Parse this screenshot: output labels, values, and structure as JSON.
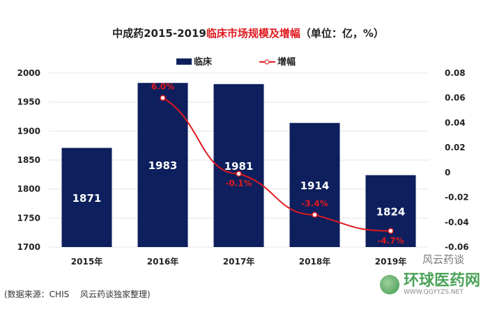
{
  "chart_data": {
    "type": "bar",
    "title_black": "中成药2015-2019",
    "title_red": "临床市场规模及增幅",
    "title_unit": "（单位：亿，%）",
    "categories": [
      "2015年",
      "2016年",
      "2017年",
      "2018年",
      "2019年"
    ],
    "series": [
      {
        "name": "临床",
        "type": "bar",
        "axis": "left",
        "values": [
          1871,
          1983,
          1981,
          1914,
          1824
        ],
        "color": "#0d1f5c"
      },
      {
        "name": "增幅",
        "type": "line",
        "axis": "right",
        "values": [
          null,
          0.06,
          -0.001,
          -0.034,
          -0.047
        ],
        "labels": [
          "",
          "6.0%",
          "-0.1%",
          "-3.4%",
          "-4.7%"
        ],
        "color": "#e0191e"
      }
    ],
    "ylim": [
      1700,
      2000
    ],
    "yticks": [
      "1700",
      "1750",
      "1800",
      "1850",
      "1900",
      "1950",
      "2000"
    ],
    "y2lim": [
      -0.06,
      0.08
    ],
    "y2ticks": [
      "-0.06",
      "-0.04",
      "-0.02",
      "0",
      "0.02",
      "0.04",
      "0.06",
      "0.08"
    ],
    "legend": "top-center"
  },
  "footer": {
    "source": "(数据来源：CHIS　 风云药谈独家整理)",
    "watermark": "风云药谈",
    "logo": "环球医药网",
    "logo_url": "WWW.QGYYZS.NET"
  }
}
